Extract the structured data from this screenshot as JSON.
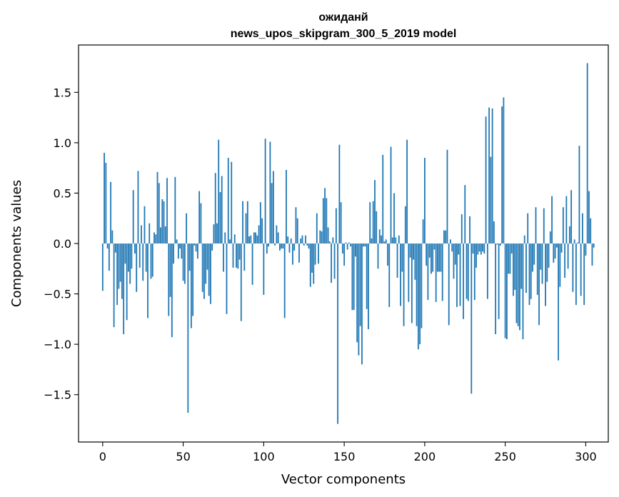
{
  "chart_data": {
    "type": "bar",
    "title": [
      "ожиданй",
      "news_upos_skipgram_300_5_2019 model"
    ],
    "xlabel": "Vector components",
    "ylabel": "Components values",
    "xlim": [
      -15,
      314
    ],
    "ylim": [
      -1.97,
      1.97
    ],
    "xticks": [
      0,
      50,
      100,
      150,
      200,
      250,
      300
    ],
    "xtick_labels": [
      "0",
      "50",
      "100",
      "150",
      "200",
      "250",
      "300"
    ],
    "yticks": [
      -1.5,
      -1.0,
      -0.5,
      0.0,
      0.5,
      1.0,
      1.5
    ],
    "ytick_labels": [
      "−1.5",
      "−1.0",
      "−0.5",
      "0.0",
      "0.5",
      "1.0",
      "1.5"
    ],
    "bar_color": "#1f77b4",
    "grid": false,
    "series": [
      {
        "name": "components",
        "x_start": 0,
        "values": [
          -0.47,
          0.9,
          0.8,
          -0.05,
          -0.27,
          0.61,
          0.13,
          -0.83,
          -0.09,
          -0.61,
          -0.45,
          -0.38,
          -0.55,
          -0.9,
          -0.2,
          -0.76,
          -0.28,
          -0.4,
          -0.25,
          0.53,
          -0.1,
          -0.48,
          0.72,
          -0.24,
          0.18,
          -0.37,
          0.37,
          -0.28,
          -0.74,
          0.2,
          -0.35,
          -0.33,
          0.11,
          0.09,
          0.71,
          0.6,
          0.16,
          0.44,
          0.42,
          0.17,
          0.65,
          -0.72,
          -0.53,
          -0.93,
          -0.2,
          0.66,
          0.04,
          -0.15,
          -0.05,
          -0.15,
          -0.37,
          -0.4,
          0.3,
          -1.68,
          -0.27,
          -0.84,
          -0.72,
          -0.02,
          -0.08,
          -0.15,
          0.52,
          0.4,
          -0.48,
          -0.55,
          -0.4,
          -0.26,
          -0.52,
          -0.6,
          -0.07,
          0.19,
          0.7,
          0.2,
          1.03,
          0.51,
          0.67,
          -0.28,
          0.11,
          -0.7,
          0.85,
          0.04,
          0.81,
          -0.24,
          0.09,
          -0.24,
          -0.25,
          -0.16,
          -0.77,
          0.42,
          -0.27,
          0.3,
          0.42,
          0.07,
          0.08,
          -0.41,
          0.11,
          0.11,
          0.08,
          0.18,
          0.41,
          0.25,
          -0.51,
          1.04,
          -0.1,
          -0.03,
          1.01,
          0.6,
          0.72,
          -0.02,
          0.18,
          0.11,
          -0.07,
          -0.05,
          -0.05,
          -0.74,
          0.73,
          0.07,
          -0.09,
          0.05,
          -0.21,
          -0.07,
          0.36,
          0.25,
          -0.19,
          0.05,
          0.08,
          -0.02,
          0.08,
          -0.02,
          -0.05,
          -0.43,
          -0.29,
          -0.4,
          -0.21,
          0.3,
          -0.2,
          0.13,
          0.12,
          0.45,
          0.55,
          0.45,
          0.16,
          0.02,
          -0.39,
          0.06,
          -0.35,
          0.35,
          -1.79,
          0.98,
          0.41,
          -0.1,
          -0.22,
          0.01,
          -0.06,
          0.01,
          -0.03,
          -0.66,
          -0.66,
          -0.13,
          -0.98,
          -1.11,
          -0.82,
          -1.2,
          -0.03,
          -0.03,
          -0.65,
          -0.85,
          0.41,
          0.05,
          0.42,
          0.63,
          0.32,
          -0.25,
          0.14,
          0.08,
          0.88,
          0.02,
          0.04,
          -0.22,
          -0.63,
          0.96,
          0.06,
          0.5,
          0.06,
          -0.34,
          0.08,
          -0.62,
          -0.28,
          -0.82,
          0.37,
          1.03,
          -0.58,
          -0.14,
          -0.79,
          -0.16,
          -0.36,
          -0.82,
          -1.05,
          -1.0,
          -0.84,
          0.24,
          0.85,
          -0.22,
          -0.56,
          -0.14,
          -0.3,
          -0.28,
          -0.06,
          -0.58,
          -0.28,
          -0.28,
          -0.28,
          -0.57,
          0.13,
          0.13,
          0.93,
          -0.81,
          0.04,
          -0.08,
          -0.35,
          -0.21,
          -0.63,
          -0.11,
          -0.62,
          0.29,
          -0.75,
          0.58,
          -0.55,
          -0.57,
          0.27,
          -1.49,
          -0.1,
          -0.56,
          -0.24,
          -0.11,
          -0.08,
          -0.11,
          -0.08,
          -0.1,
          1.26,
          -0.55,
          1.35,
          0.86,
          1.34,
          0.22,
          -0.9,
          -0.01,
          -0.75,
          -0.02,
          1.36,
          1.45,
          -0.94,
          -0.95,
          -0.3,
          -0.3,
          -0.1,
          -0.52,
          -0.46,
          -0.79,
          -0.82,
          -0.86,
          -0.45,
          -0.95,
          0.08,
          -0.49,
          0.3,
          -0.61,
          -0.55,
          -0.28,
          -0.21,
          0.36,
          -0.51,
          -0.81,
          -0.26,
          -0.4,
          0.35,
          -0.62,
          -0.38,
          -0.24,
          0.12,
          0.47,
          -0.19,
          -0.15,
          -0.04,
          -1.16,
          -0.43,
          -0.09,
          0.36,
          -0.34,
          0.47,
          -0.25,
          0.17,
          0.53,
          -0.48,
          0.04,
          -0.61,
          0.01,
          0.97,
          -0.52,
          0.3,
          -0.61,
          -0.12,
          1.79,
          0.52,
          0.25,
          -0.22,
          -0.04
        ]
      }
    ]
  }
}
